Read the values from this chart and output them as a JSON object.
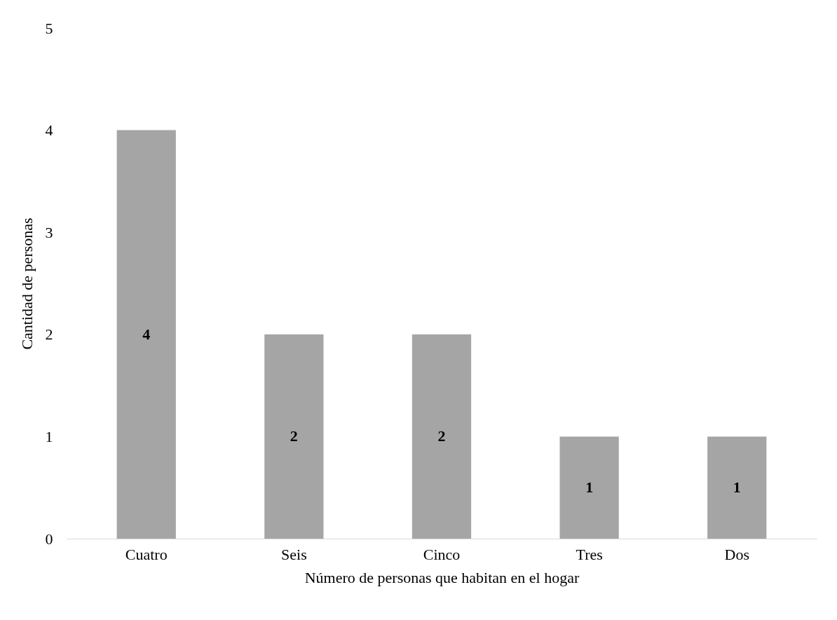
{
  "chart_data": {
    "type": "bar",
    "xlabel": "Número de personas que habitan en el hogar",
    "ylabel": "Cantidad de personas",
    "categories": [
      "Cuatro",
      "Seis",
      "Cinco",
      "Tres",
      "Dos"
    ],
    "values": [
      4,
      2,
      2,
      1,
      1
    ],
    "color": "#a5a5a5",
    "ylim": [
      0,
      5
    ],
    "yticks": [
      0,
      1,
      2,
      3,
      4,
      5
    ],
    "grid": false,
    "data_labels": true
  }
}
